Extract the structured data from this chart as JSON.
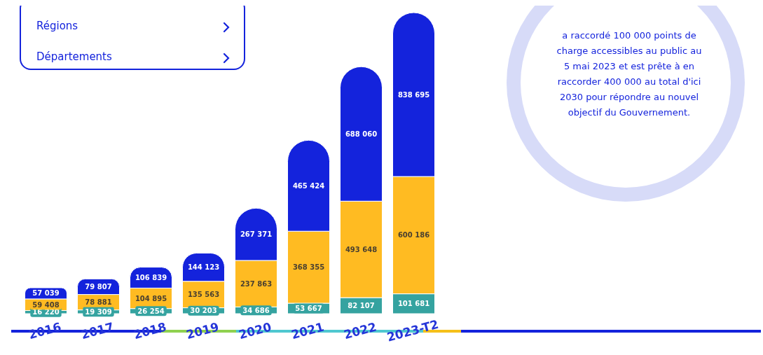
{
  "chart_data": {
    "type": "bar",
    "stacked": true,
    "data_labels": true,
    "legend": false,
    "grid": false,
    "categories": [
      "2016",
      "2017",
      "2018",
      "2019",
      "2020",
      "2021",
      "2022",
      "2023-T2"
    ],
    "series": [
      {
        "color": "#35a3a0",
        "values": [
          16220,
          19309,
          26254,
          30203,
          34686,
          53667,
          82107,
          101681
        ]
      },
      {
        "color": "#ffbb22",
        "values": [
          59408,
          78881,
          104895,
          135563,
          237863,
          368355,
          493648,
          600186
        ]
      },
      {
        "color": "#1423dc",
        "values": [
          57039,
          79807,
          106839,
          144123,
          267371,
          465424,
          688060,
          838695
        ]
      }
    ],
    "annotations": [
      "Régions",
      "Départements",
      "a raccordé 100 000 points de charge accessibles au public au 5 mai 2023 et est prête à en raccorder 400 000 au total d'ici 2030 pour répondre au nouvel objectif du Gouvernement."
    ]
  }
}
